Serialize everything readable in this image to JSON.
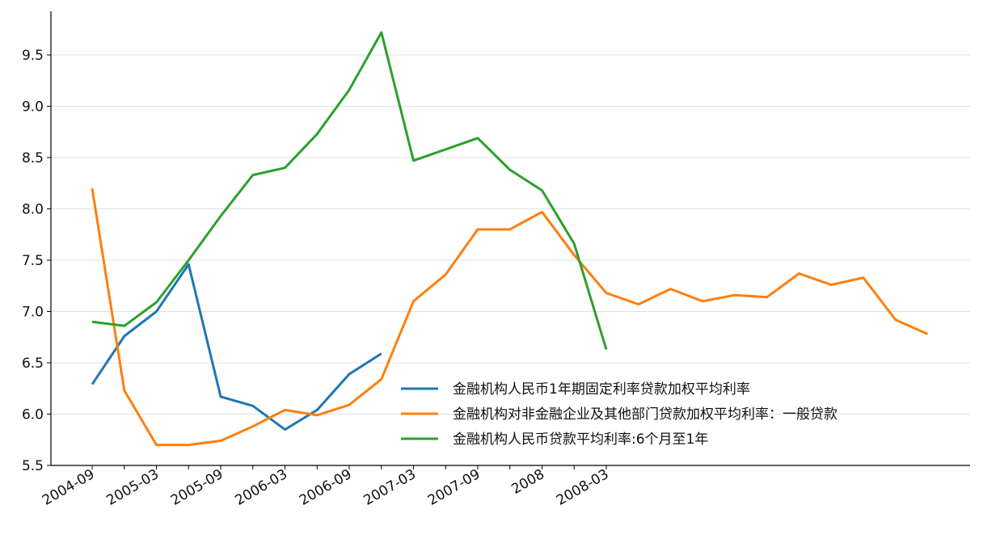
{
  "chart_data": {
    "type": "line",
    "title": "",
    "xlabel": "",
    "ylabel": "",
    "x_tick_labels": [
      "2004-09",
      "2005-03",
      "2005-09",
      "2006-03",
      "2006-09",
      "2007-03",
      "2007-09",
      "2008",
      "2008-03"
    ],
    "ylim": [
      5.5,
      9.9
    ],
    "y_ticks": [
      5.5,
      6.0,
      6.5,
      7.0,
      7.5,
      8.0,
      8.5,
      9.0,
      9.5
    ],
    "grid": "horizontal",
    "legend_position": "lower-center",
    "series": [
      {
        "name": "金融机构人民币1年期固定利率贷款加权平均利率",
        "color": "#1f77b4",
        "values": [
          6.29,
          6.76,
          7.0,
          7.46,
          6.17,
          6.08,
          5.85,
          6.04,
          6.39,
          6.59
        ]
      },
      {
        "name": "金融机构对非金融企业及其他部门贷款加权平均利率：一般贷款",
        "color": "#ff7f0e",
        "values": [
          8.2,
          6.23,
          5.7,
          5.7,
          5.74,
          5.88,
          6.04,
          5.99,
          6.09,
          6.34,
          7.1,
          7.36,
          7.8,
          7.8,
          7.97,
          7.55,
          7.18,
          7.07,
          7.22,
          7.1,
          7.16,
          7.14,
          7.37,
          7.26,
          7.33,
          6.92,
          6.78
        ]
      },
      {
        "name": "金融机构人民币贷款平均利率:6个月至1年",
        "color": "#2ca02c",
        "values": [
          6.9,
          6.86,
          7.09,
          7.5,
          7.93,
          8.33,
          8.4,
          8.73,
          9.16,
          9.72,
          8.47,
          8.58,
          8.69,
          8.38,
          8.18,
          7.66,
          6.63
        ]
      }
    ]
  }
}
